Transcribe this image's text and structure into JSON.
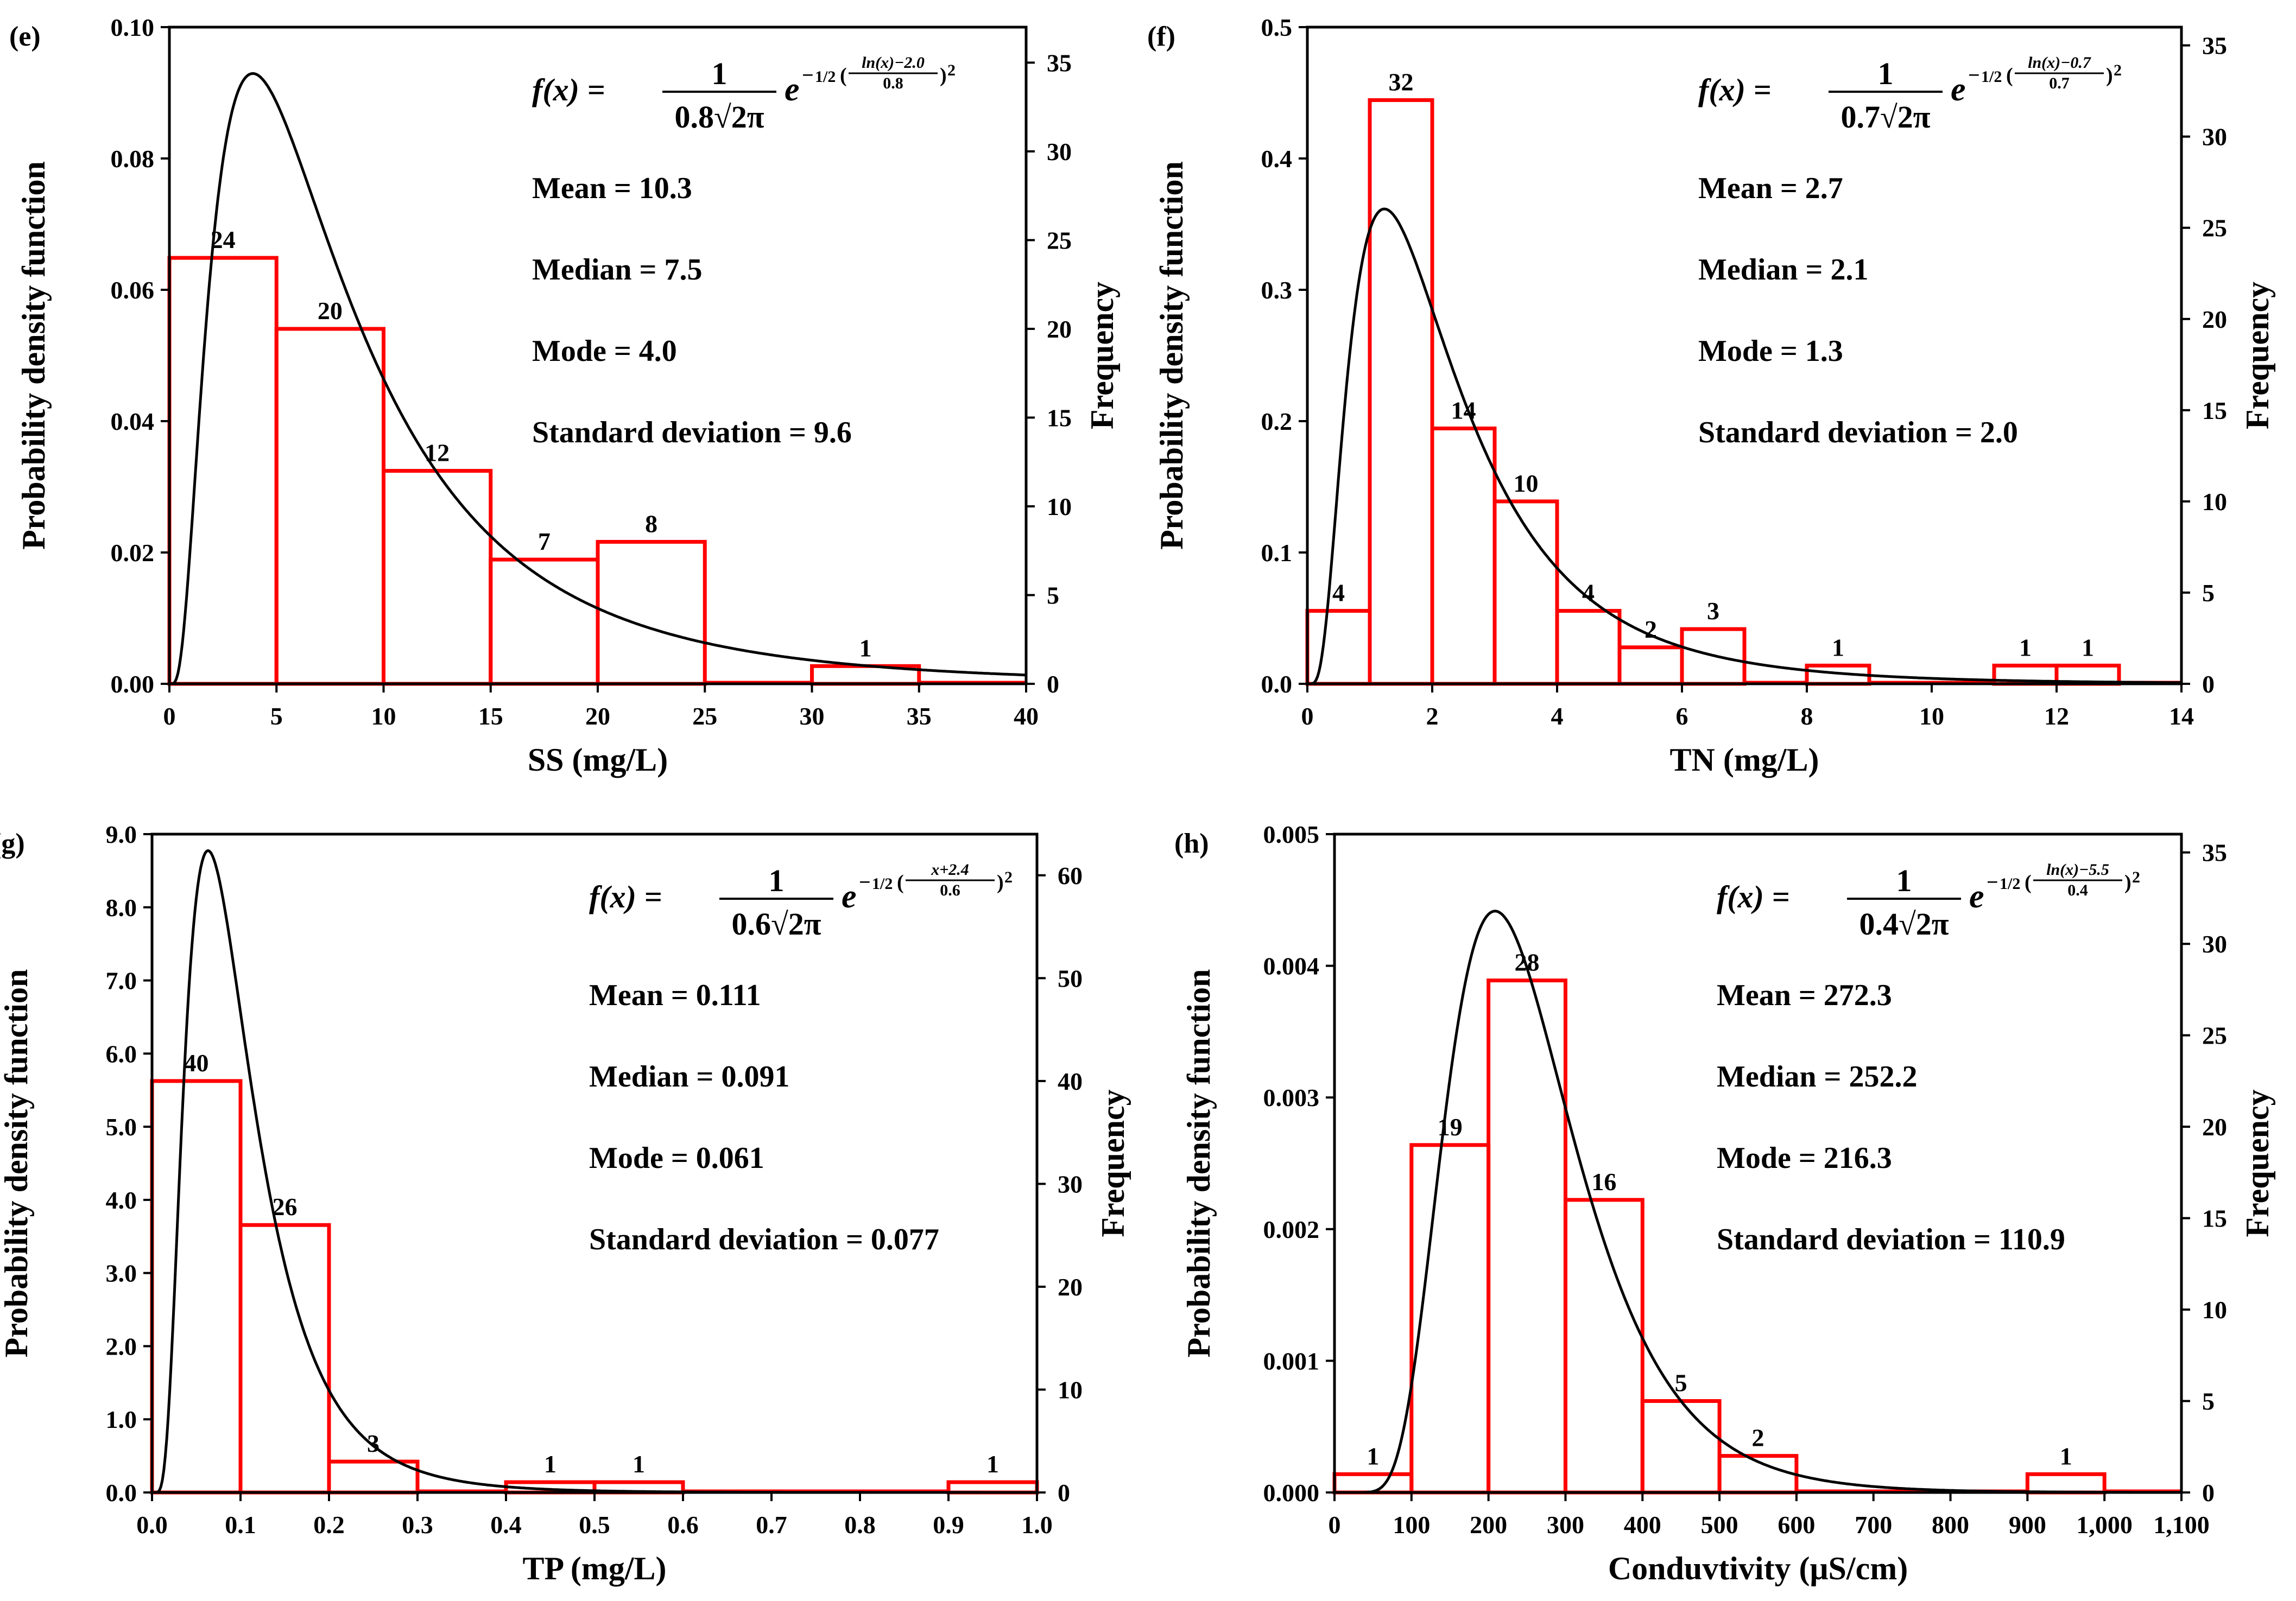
{
  "chart_data": [
    {
      "type": "bar",
      "panel_label": "(e)",
      "xlabel": "SS (mg/L)",
      "ylabel": "Probability density function",
      "y2label": "Frequency",
      "xlim": [
        0,
        40
      ],
      "xticks": [
        0,
        5,
        10,
        15,
        20,
        25,
        30,
        35,
        40
      ],
      "xtick_labels": [
        "0",
        "5",
        "10",
        "15",
        "20",
        "25",
        "30",
        "35",
        "40"
      ],
      "ylim": [
        0,
        0.1
      ],
      "yticks": [
        0,
        0.02,
        0.04,
        0.06,
        0.08,
        0.1
      ],
      "ytick_labels": [
        "0.00",
        "0.02",
        "0.04",
        "0.06",
        "0.08",
        "0.10"
      ],
      "y2lim": [
        0,
        37
      ],
      "y2ticks": [
        0,
        5,
        10,
        15,
        20,
        25,
        30,
        35
      ],
      "y2tick_labels": [
        "0",
        "5",
        "10",
        "15",
        "20",
        "25",
        "30",
        "35"
      ],
      "bins": [
        [
          0,
          5
        ],
        [
          5,
          10
        ],
        [
          10,
          15
        ],
        [
          15,
          20
        ],
        [
          20,
          25
        ],
        [
          25,
          30
        ],
        [
          30,
          35
        ],
        [
          35,
          40
        ]
      ],
      "frequencies": [
        24,
        20,
        12,
        7,
        8,
        0,
        1,
        0
      ],
      "bar_labels": [
        "24",
        "20",
        "12",
        "7",
        "8",
        "",
        "1",
        ""
      ],
      "curve": {
        "dist": "lognormal",
        "mu": 2.0,
        "sigma": 0.8
      },
      "equation": {
        "prefix": "f(x) = ",
        "numerator": "1",
        "denominator": "0.8√2π",
        "base": "e",
        "exp_sign": "−",
        "exp_half": "1/2",
        "exp_num": "ln(x)−2.0",
        "exp_den": "0.8",
        "exp_power": "2"
      },
      "stats": [
        "Mean = 10.3",
        "Median = 7.5",
        "Mode = 4.0",
        "Standard deviation = 9.6"
      ],
      "colors": {
        "bars": "#ff0000",
        "curve": "#000000"
      }
    },
    {
      "type": "bar",
      "panel_label": "(f)",
      "xlabel": "TN (mg/L)",
      "ylabel": "Probability density function",
      "y2label": "Frequency",
      "xlim": [
        0,
        14
      ],
      "xticks": [
        0,
        2,
        4,
        6,
        8,
        10,
        12,
        14
      ],
      "xtick_labels": [
        "0",
        "2",
        "4",
        "6",
        "8",
        "10",
        "12",
        "14"
      ],
      "ylim": [
        0,
        0.5
      ],
      "yticks": [
        0,
        0.1,
        0.2,
        0.3,
        0.4,
        0.5
      ],
      "ytick_labels": [
        "0.0",
        "0.1",
        "0.2",
        "0.3",
        "0.4",
        "0.5"
      ],
      "y2lim": [
        0,
        36
      ],
      "y2ticks": [
        0,
        5,
        10,
        15,
        20,
        25,
        30,
        35
      ],
      "y2tick_labels": [
        "0",
        "5",
        "10",
        "15",
        "20",
        "25",
        "30",
        "35"
      ],
      "bins": [
        [
          0,
          1
        ],
        [
          1,
          2
        ],
        [
          2,
          3
        ],
        [
          3,
          4
        ],
        [
          4,
          5
        ],
        [
          5,
          6
        ],
        [
          6,
          7
        ],
        [
          7,
          8
        ],
        [
          8,
          9
        ],
        [
          9,
          10
        ],
        [
          10,
          11
        ],
        [
          11,
          12
        ],
        [
          12,
          13
        ],
        [
          13,
          14
        ]
      ],
      "frequencies": [
        4,
        32,
        14,
        10,
        4,
        2,
        3,
        0,
        1,
        0,
        0,
        1,
        1,
        0
      ],
      "bar_labels": [
        "4",
        "32",
        "14",
        "10",
        "4",
        "2",
        "3",
        "",
        "1",
        "",
        "",
        "1",
        "1",
        ""
      ],
      "curve": {
        "dist": "lognormal",
        "mu": 0.7,
        "sigma": 0.7
      },
      "equation": {
        "prefix": "f(x) = ",
        "numerator": "1",
        "denominator": "0.7√2π",
        "base": "e",
        "exp_sign": "−",
        "exp_half": "1/2",
        "exp_num": "ln(x)−0.7",
        "exp_den": "0.7",
        "exp_power": "2"
      },
      "stats": [
        "Mean = 2.7",
        "Median = 2.1",
        "Mode = 1.3",
        "Standard deviation = 2.0"
      ],
      "colors": {
        "bars": "#ff0000",
        "curve": "#000000"
      }
    },
    {
      "type": "bar",
      "panel_label": "(g)",
      "xlabel": "TP (mg/L)",
      "ylabel": "Probability density function",
      "y2label": "Frequency",
      "xlim": [
        0,
        1.0
      ],
      "xticks": [
        0,
        0.1,
        0.2,
        0.3,
        0.4,
        0.5,
        0.6,
        0.7,
        0.8,
        0.9,
        1.0
      ],
      "xtick_labels": [
        "0.0",
        "0.1",
        "0.2",
        "0.3",
        "0.4",
        "0.5",
        "0.6",
        "0.7",
        "0.8",
        "0.9",
        "1.0"
      ],
      "ylim": [
        0,
        9.0
      ],
      "yticks": [
        0,
        1,
        2,
        3,
        4,
        5,
        6,
        7,
        8,
        9
      ],
      "ytick_labels": [
        "0.0",
        "1.0",
        "2.0",
        "3.0",
        "4.0",
        "5.0",
        "6.0",
        "7.0",
        "8.0",
        "9.0"
      ],
      "y2lim": [
        0,
        64
      ],
      "y2ticks": [
        0,
        10,
        20,
        30,
        40,
        50,
        60
      ],
      "y2tick_labels": [
        "0",
        "10",
        "20",
        "30",
        "40",
        "50",
        "60"
      ],
      "bins": [
        [
          0,
          0.1
        ],
        [
          0.1,
          0.2
        ],
        [
          0.2,
          0.3
        ],
        [
          0.3,
          0.4
        ],
        [
          0.4,
          0.5
        ],
        [
          0.5,
          0.6
        ],
        [
          0.6,
          0.7
        ],
        [
          0.7,
          0.8
        ],
        [
          0.8,
          0.9
        ],
        [
          0.9,
          1.0
        ]
      ],
      "frequencies": [
        40,
        26,
        3,
        0,
        1,
        1,
        0,
        0,
        0,
        1
      ],
      "bar_labels": [
        "40",
        "26",
        "3",
        "",
        "1",
        "1",
        "",
        "",
        "",
        "1"
      ],
      "curve": {
        "dist": "lognormal",
        "mu": -2.4,
        "sigma": 0.6
      },
      "equation": {
        "prefix": "f(x) = ",
        "numerator": "1",
        "denominator": "0.6√2π",
        "base": "e",
        "exp_sign": "−",
        "exp_half": "1/2",
        "exp_num": "x+2.4",
        "exp_den": "0.6",
        "exp_power": "2"
      },
      "stats": [
        "Mean = 0.111",
        "Median = 0.091",
        "Mode = 0.061",
        "Standard deviation = 0.077"
      ],
      "colors": {
        "bars": "#ff0000",
        "curve": "#000000"
      }
    },
    {
      "type": "bar",
      "panel_label": "(h)",
      "xlabel": "Conduvtivity (μS/cm)",
      "ylabel": "Probability density function",
      "y2label": "Frequency",
      "xlim": [
        0,
        1100
      ],
      "xticks": [
        0,
        100,
        200,
        300,
        400,
        500,
        600,
        700,
        800,
        900,
        1000,
        1100
      ],
      "xtick_labels": [
        "0",
        "100",
        "200",
        "300",
        "400",
        "500",
        "600",
        "700",
        "800",
        "900",
        "1,000",
        "1,100"
      ],
      "ylim": [
        0,
        0.005
      ],
      "yticks": [
        0,
        0.001,
        0.002,
        0.003,
        0.004,
        0.005
      ],
      "ytick_labels": [
        "0.000",
        "0.001",
        "0.002",
        "0.003",
        "0.004",
        "0.005"
      ],
      "y2lim": [
        0,
        36
      ],
      "y2ticks": [
        0,
        5,
        10,
        15,
        20,
        25,
        30,
        35
      ],
      "y2tick_labels": [
        "0",
        "5",
        "10",
        "15",
        "20",
        "25",
        "30",
        "35"
      ],
      "bins": [
        [
          0,
          100
        ],
        [
          100,
          200
        ],
        [
          200,
          300
        ],
        [
          300,
          400
        ],
        [
          400,
          500
        ],
        [
          500,
          600
        ],
        [
          600,
          700
        ],
        [
          700,
          800
        ],
        [
          800,
          900
        ],
        [
          900,
          1000
        ],
        [
          1000,
          1100
        ]
      ],
      "frequencies": [
        1,
        19,
        28,
        16,
        5,
        2,
        0,
        0,
        0,
        1,
        0
      ],
      "bar_labels": [
        "1",
        "19",
        "28",
        "16",
        "5",
        "2",
        "",
        "",
        "",
        "1",
        ""
      ],
      "curve": {
        "dist": "lognormal",
        "mu": 5.5,
        "sigma": 0.4
      },
      "equation": {
        "prefix": "f(x) = ",
        "numerator": "1",
        "denominator": "0.4√2π",
        "base": "e",
        "exp_sign": "−",
        "exp_half": "1/2",
        "exp_num": "ln(x)−5.5",
        "exp_den": "0.4",
        "exp_power": "2"
      },
      "stats": [
        "Mean = 272.3",
        "Median = 252.2",
        "Mode = 216.3",
        "Standard deviation = 110.9"
      ],
      "colors": {
        "bars": "#ff0000",
        "curve": "#000000"
      }
    }
  ]
}
